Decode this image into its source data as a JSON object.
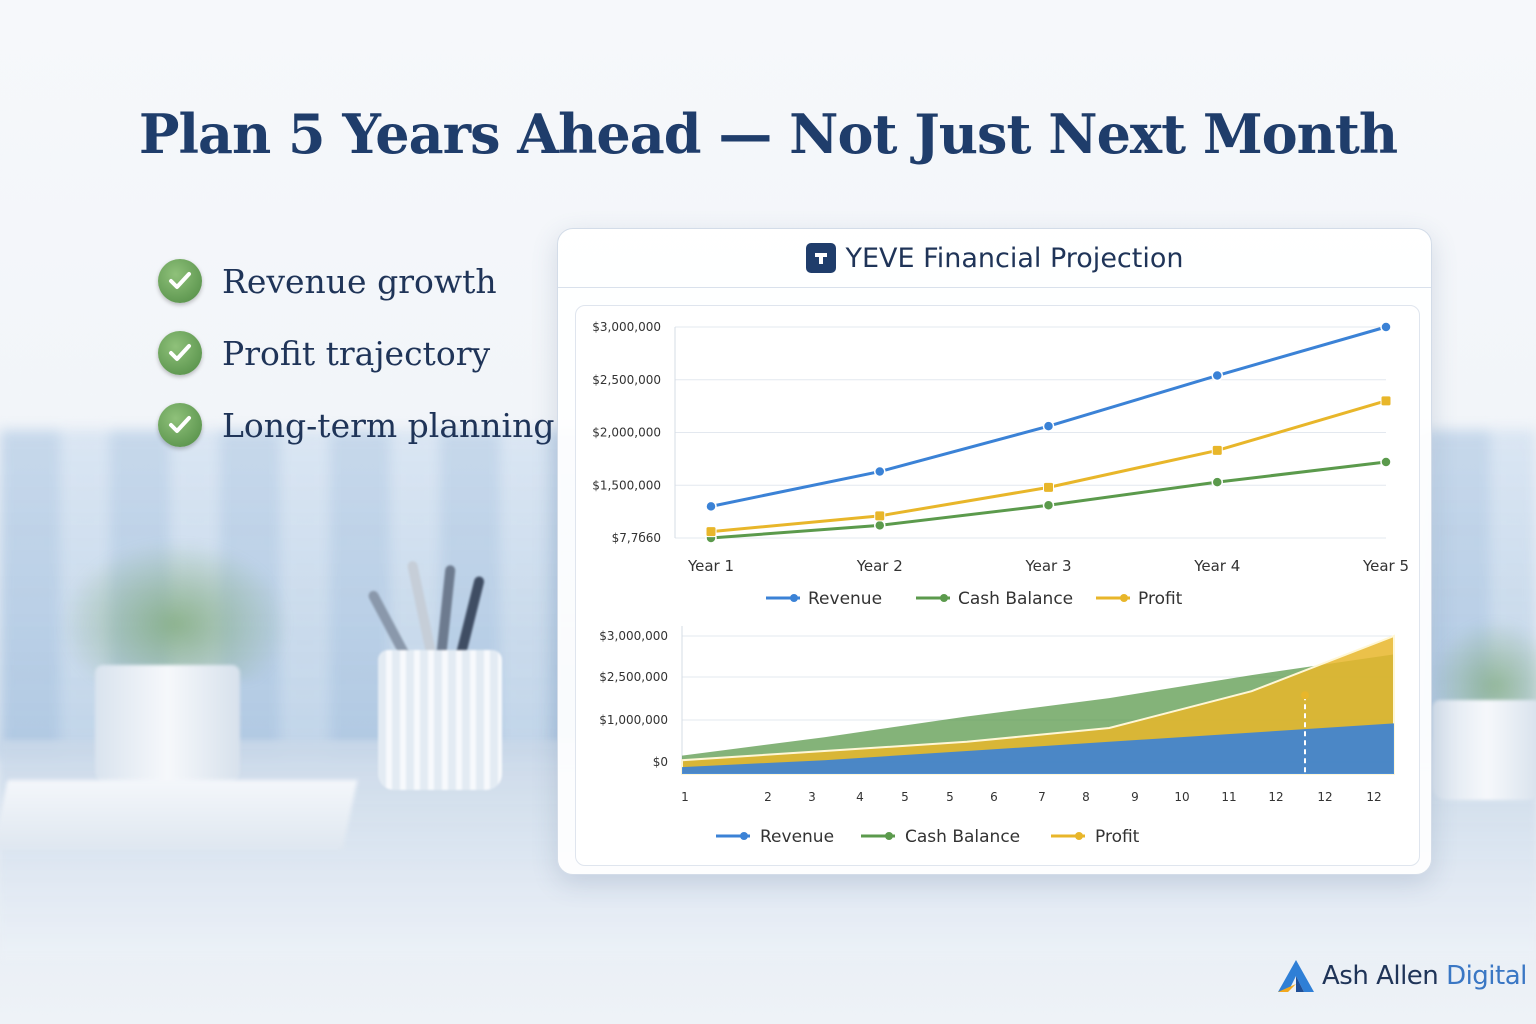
{
  "headline": "Plan 5 Years Ahead — Not Just Next Month",
  "checklist": [
    {
      "label": "Revenue growth",
      "icon": "check-circle-icon"
    },
    {
      "label": "Profit trajectory",
      "icon": "check-circle-icon"
    },
    {
      "label": "Long-term planning",
      "icon": "check-circle-icon"
    }
  ],
  "card": {
    "title": "YEVE Financial Projection",
    "logo_icon": "yeve-logo-icon"
  },
  "brand": {
    "part1": "Ash Allen",
    "part2": "Digital",
    "logo": "triangle-logo-icon"
  },
  "colors": {
    "revenue": "#3b82d6",
    "cash": "#5b9a4c",
    "profit": "#e8b62a",
    "title": "#1f3d6b"
  },
  "chart_data": [
    {
      "type": "line",
      "categories": [
        "Year 1",
        "Year 2",
        "Year 3",
        "Year 4",
        "Year 5"
      ],
      "y_tick_labels": [
        "$7,7б60",
        "$1,500,000",
        "$2,000,000",
        "$2,500,000",
        "$3,000,000"
      ],
      "ylim": [
        1000000,
        3000000
      ],
      "series": [
        {
          "name": "Revenue",
          "values": [
            1300000,
            1630000,
            2060000,
            2540000,
            3000000
          ]
        },
        {
          "name": "Cash Balance",
          "values": [
            1000000,
            1120000,
            1310000,
            1530000,
            1720000
          ]
        },
        {
          "name": "Profit",
          "values": [
            1060000,
            1210000,
            1480000,
            1830000,
            2300000
          ]
        }
      ],
      "legend": "bottom",
      "grid": true
    },
    {
      "type": "area",
      "x_tick_labels": [
        "1",
        "2",
        "3",
        "4",
        "5",
        "5",
        "6",
        "7",
        "8",
        "9",
        "10",
        "11",
        "12",
        "12",
        "12"
      ],
      "y_tick_labels": [
        "$0",
        "$1,000,000",
        "$2,500,000",
        "$3,000,000"
      ],
      "series": [
        {
          "name": "Revenue",
          "values": [
            150000,
            300000,
            500000,
            700000,
            900000,
            1100000
          ]
        },
        {
          "name": "Cash Balance",
          "values": [
            400000,
            800000,
            1250000,
            1650000,
            2150000,
            2600000
          ]
        },
        {
          "name": "Profit",
          "values": [
            300000,
            500000,
            700000,
            1000000,
            1800000,
            3000000
          ]
        }
      ],
      "x": [
        0,
        2,
        4,
        6,
        8,
        10
      ],
      "legend": "bottom",
      "grid": true
    }
  ]
}
